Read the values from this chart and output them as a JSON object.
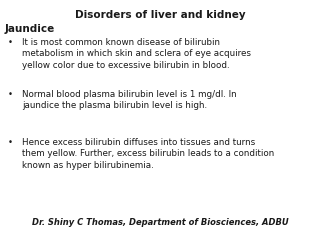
{
  "title": "Disorders of liver and kidney",
  "subtitle": "Jaundice",
  "bullets": [
    "It is most common known disease of bilirubin\nmetabolism in which skin and sclera of eye acquires\nyellow color due to excessive bilirubin in blood.",
    "Normal blood plasma bilirubin level is 1 mg/dl. In\njaundice the plasma bilirubin level is high.",
    "Hence excess bilirubin diffuses into tissues and turns\nthem yellow. Further, excess bilirubin leads to a condition\nknown as hyper bilirubinemia."
  ],
  "footer": "Dr. Shiny C Thomas, Department of Biosciences, ADBU",
  "bg_color": "#ffffff",
  "title_fontsize": 7.5,
  "subtitle_fontsize": 7.5,
  "bullet_fontsize": 6.3,
  "footer_fontsize": 6.0,
  "text_color": "#1a1a1a"
}
